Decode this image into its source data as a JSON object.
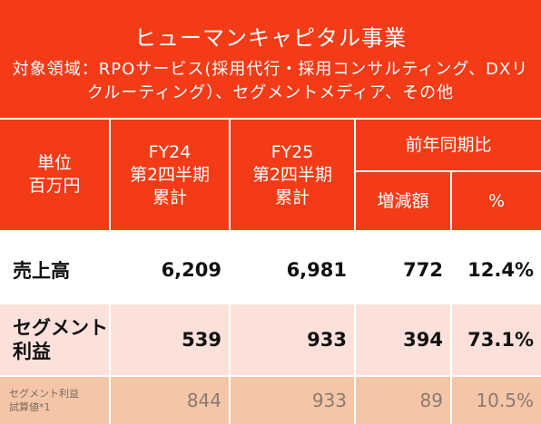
{
  "title": {
    "main": "ヒューマンキャピタル事業",
    "sub": "対象領域：RPOサービス(採用代行・採用コンサルティング、DXリクルーティング）、セグメントメディア、その他"
  },
  "header": {
    "unit_line1": "単位",
    "unit_line2": "百万円",
    "fy24_line1": "FY24",
    "fy24_line2": "第2四半期",
    "fy24_line3": "累計",
    "fy25_line1": "FY25",
    "fy25_line2": "第2四半期",
    "fy25_line3": "累計",
    "yoy": "前年同期比",
    "change": "増減額",
    "percent": "%"
  },
  "rows": [
    {
      "label_line1": "売上高",
      "label_line2": "",
      "fy24": "6,209",
      "fy25": "6,981",
      "change": "772",
      "percent": "12.4%"
    },
    {
      "label_line1": "セグメント",
      "label_line2": "利益",
      "fy24": "539",
      "fy25": "933",
      "change": "394",
      "percent": "73.1%"
    },
    {
      "label_line1": "セグメント利益",
      "label_line2": "試算値*1",
      "fy24": "844",
      "fy25": "933",
      "change": "89",
      "percent": "10.5%"
    }
  ],
  "colors": {
    "header_bg": "#F33B17",
    "row_pink": "#FCE1DB",
    "row_peach": "#F4C6A7"
  }
}
